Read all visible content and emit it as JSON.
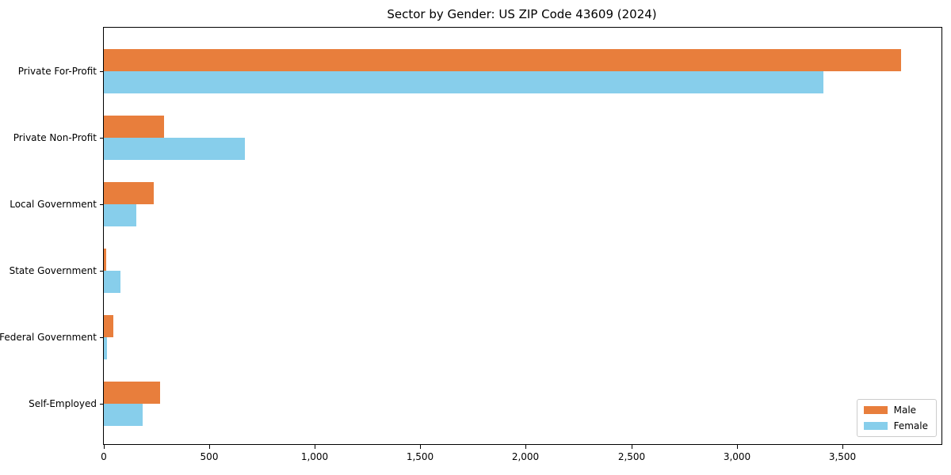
{
  "chart_data": {
    "type": "bar",
    "orientation": "horizontal",
    "title": "Sector by Gender: US ZIP Code 43609 (2024)",
    "categories": [
      "Private For-Profit",
      "Private Non-Profit",
      "Local Government",
      "State Government",
      "Federal Government",
      "Self-Employed"
    ],
    "series": [
      {
        "name": "Male",
        "color": "#E87E3C",
        "values": [
          3780,
          285,
          235,
          12,
          45,
          265
        ]
      },
      {
        "name": "Female",
        "color": "#87CEEB",
        "values": [
          3410,
          670,
          155,
          80,
          15,
          185
        ]
      }
    ],
    "xlabel": "",
    "ylabel": "",
    "xlim": [
      0,
      3970
    ],
    "xticks": [
      0,
      500,
      1000,
      1500,
      2000,
      2500,
      3000,
      3500
    ],
    "xtick_labels": [
      "0",
      "500",
      "1,000",
      "1,500",
      "2,000",
      "2,500",
      "3,000",
      "3,500"
    ],
    "grid": false,
    "legend": {
      "position": "lower right"
    },
    "colors": {
      "spine": "#000000",
      "background": "#ffffff"
    }
  }
}
